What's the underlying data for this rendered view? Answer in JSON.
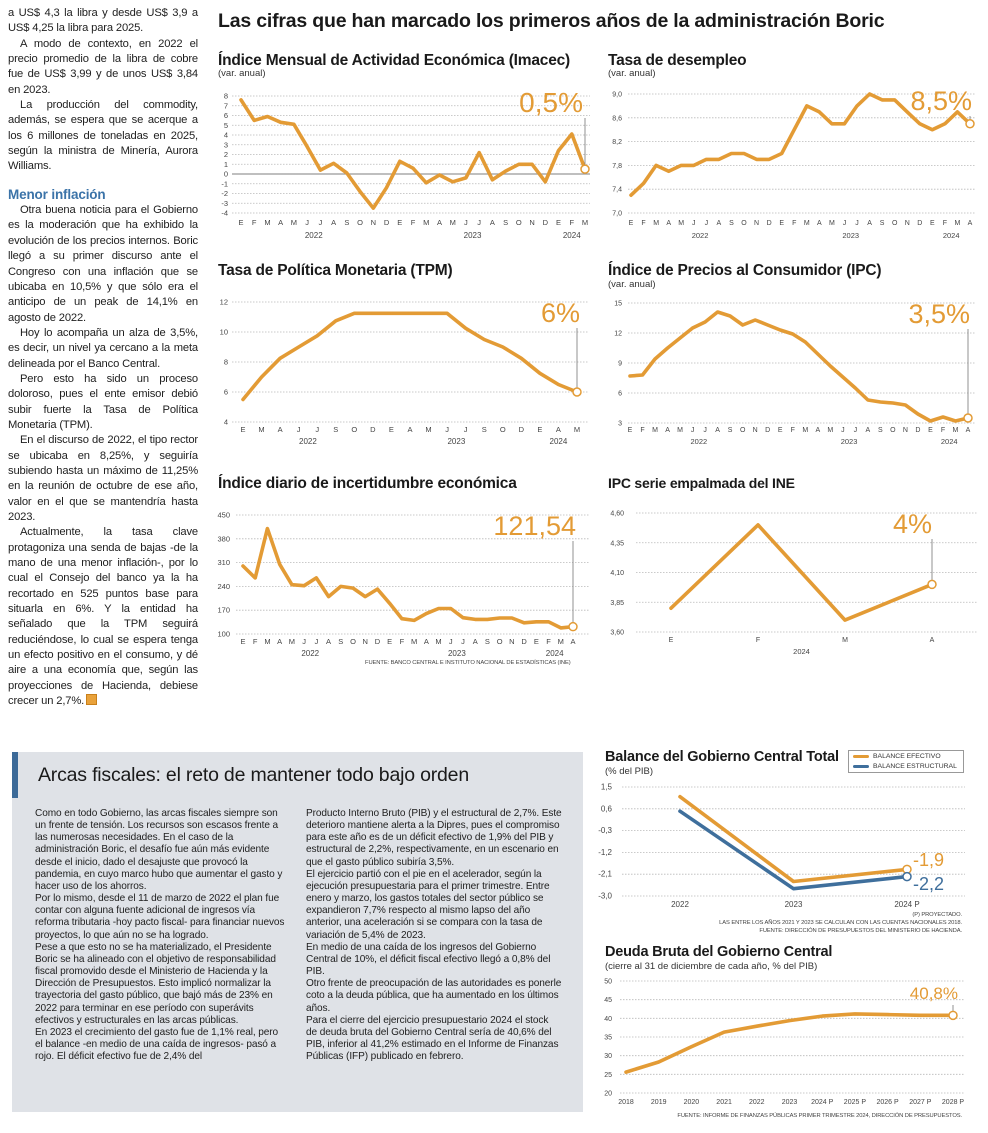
{
  "headline": "Las cifras que han marcado los primeros años de la administración Boric",
  "left_column": {
    "paragraphs_top": [
      "a US$ 4,3 la libra y desde US$ 3,9 a US$ 4,25 la libra para 2025.",
      "A modo de contexto, en 2022 el precio promedio de la libra de cobre fue de US$ 3,99 y de unos US$ 3,84 en 2023.",
      "La producción del commodity, además, se espera que se acerque a los 6 millones de toneladas en 2025, según la ministra de Minería, Aurora Williams."
    ],
    "subhead": "Menor inflación",
    "paragraphs_bottom": [
      "Otra buena noticia para el Gobierno es la moderación que ha exhibido la evolución de los precios internos. Boric llegó a su primer discurso ante el Congreso con una inflación que se ubicaba en 10,5% y que sólo era el anticipo de un peak de 14,1% en agosto de 2022.",
      "Hoy lo acompaña un alza de 3,5%, es decir, un nivel ya cercano a la meta delineada por el Banco Central.",
      "Pero esto ha sido un proceso doloroso, pues el ente emisor debió subir fuerte la Tasa de Política Monetaria (TPM).",
      "En el discurso de 2022, el tipo rector se ubicaba en 8,25%, y seguiría subiendo hasta un máximo de 11,25% en la reunión de octubre de ese año, valor en el que se mantendría hasta 2023.",
      "Actualmente, la tasa clave protagoniza una senda de bajas -de la mano de una menor inflación-, por lo cual el Consejo del banco ya la ha recortado en 525 puntos base para situarla en 6%. Y la entidad ha señalado que la TPM seguirá reduciéndose, lo cual se espera tenga un efecto positivo en el consumo, y dé aire a una economía que, según las proyecciones de Hacienda, debiese crecer un 2,7%."
    ]
  },
  "fiscal": {
    "title": "Arcas fiscales: el reto de mantener todo bajo orden",
    "col1": [
      "Como en todo Gobierno, las arcas fiscales siempre son un frente de tensión. Los recursos son escasos frente a las numerosas necesidades. En el caso de la administración Boric, el desafío fue aún más evidente desde el inicio, dado el desajuste que provocó la pandemia, en cuyo marco hubo que aumentar el gasto y hacer uso de los ahorros.",
      "Por lo mismo, desde el 11 de marzo de 2022 el plan fue contar con alguna fuente adicional de ingresos vía reforma tributaria -hoy pacto fiscal- para financiar nuevos proyectos, lo que aún no se ha logrado.",
      "Pese a que esto no se ha materializado, el Presidente Boric se ha alineado con el objetivo de responsabilidad fiscal promovido desde el Ministerio de Hacienda y la Dirección de Presupuestos. Esto implicó normalizar la trayectoria del gasto público, que bajó más de 23% en 2022 para terminar en ese período con superávits efectivos y estructurales en las arcas públicas.",
      "En 2023 el crecimiento del gasto fue de 1,1% real, pero el balance -en medio de una caída de ingresos- pasó a rojo. El déficit efectivo fue de 2,4% del"
    ],
    "col2": [
      "Producto Interno Bruto (PIB) y el estructural de 2,7%. Este deterioro mantiene alerta a la Dipres, pues el compromiso para este año es de un déficit efectivo de 1,9% del PIB y estructural de 2,2%, respectivamente, en un escenario en que el gasto público subiría 3,5%.",
      "El ejercicio partió con el pie en el acelerador, según la ejecución presupuestaria para el primer trimestre. Entre enero y marzo, los gastos totales del sector público se expandieron 7,7% respecto al mismo lapso del año anterior, una aceleración si se compara con la tasa de variación de 5,4% de 2023.",
      "En medio de una caída de los ingresos del Gobierno Central de 10%, el déficit fiscal efectivo llegó a 0,8% del PIB.",
      "Otro frente de preocupación de las autoridades es ponerle coto a la deuda pública, que ha aumentado en los últimos años.",
      "Para el cierre del ejercicio presupuestario 2024 el stock de deuda bruta del Gobierno Central sería de 40,6% del PIB, inferior al 41,2% estimado en el Informe de Finanzas Públicas (IFP) publicado en febrero."
    ]
  },
  "colors": {
    "orange": "#e39b35",
    "blue": "#3f6f9c",
    "fiscal_bg": "#dfe2e7",
    "subhead": "#3b73a8"
  },
  "sources": {
    "economy": "FUENTE: BANCO CENTRAL E INSTITUTO NACIONAL DE ESTADÍSTICAS (INE)",
    "balance_note1": "(P) PROYECTADO.",
    "balance_note2": "LAS ENTRE LOS AÑOS 2021 Y 2023 SE CALCULAN  CON LAS CUENTAS NACIONALES 2018.",
    "balance_source": "FUENTE: DIRECCIÓN DE PRESUPUESTOS DEL MINISTERIO DE HACIENDA.",
    "deuda_source": "FUENTE: INFORME DE FINANZAS PÚBLICAS PRIMER TRIMESTRE 2024, DIRECCIÓN DE PRESUPUESTOS."
  },
  "chart_data": {
    "imacec": {
      "type": "line",
      "title": "Índice Mensual de Actividad Económica (Imacec)",
      "subtitle": "(var. anual)",
      "x_labels": [
        "E",
        "F",
        "M",
        "A",
        "M",
        "J",
        "J",
        "A",
        "S",
        "O",
        "N",
        "D",
        "E",
        "F",
        "M",
        "A",
        "M",
        "J",
        "J",
        "A",
        "S",
        "O",
        "N",
        "D",
        "E",
        "F",
        "M"
      ],
      "years": [
        "2022",
        "2023",
        "2024"
      ],
      "ytick_labels": [
        "8",
        "7",
        "6",
        "5",
        "4",
        "3",
        "2",
        "1",
        "0",
        "-1",
        "-2",
        "-3",
        "-4"
      ],
      "ylim": [
        -4,
        8
      ],
      "zero_line": true,
      "grid": true,
      "series": [
        {
          "values": [
            7.6,
            5.5,
            5.9,
            5.3,
            5.1,
            2.8,
            0.4,
            1.1,
            0.1,
            -1.8,
            -3.5,
            -1.4,
            1.3,
            0.6,
            -0.9,
            -0.1,
            -0.8,
            -0.4,
            2.2,
            -0.6,
            0.3,
            1.0,
            1.0,
            -0.8,
            2.4,
            4.1,
            0.5
          ],
          "end_label": "0,5%"
        }
      ]
    },
    "desempleo": {
      "type": "line",
      "title": "Tasa de desempleo",
      "subtitle": "(var. anual)",
      "x_labels": [
        "E",
        "F",
        "M",
        "A",
        "M",
        "J",
        "J",
        "A",
        "S",
        "O",
        "N",
        "D",
        "E",
        "F",
        "M",
        "A",
        "M",
        "J",
        "J",
        "A",
        "S",
        "O",
        "N",
        "D",
        "E",
        "F",
        "M",
        "A"
      ],
      "years": [
        "2022",
        "2023",
        "2024"
      ],
      "ytick_labels": [
        "9,0",
        "8,6",
        "8,2",
        "7,8",
        "7,4",
        "7,0"
      ],
      "ylim": [
        7.0,
        9.0
      ],
      "grid": true,
      "series": [
        {
          "values": [
            7.3,
            7.5,
            7.8,
            7.7,
            7.8,
            7.8,
            7.9,
            7.9,
            8.0,
            8.0,
            7.9,
            7.9,
            8.0,
            8.4,
            8.8,
            8.7,
            8.5,
            8.5,
            8.8,
            9.0,
            8.9,
            8.9,
            8.7,
            8.5,
            8.4,
            8.5,
            8.7,
            8.5
          ],
          "end_label": "8,5%"
        }
      ]
    },
    "tpm": {
      "type": "line",
      "title": "Tasa de Política Monetaria (TPM)",
      "subtitle": "",
      "x_labels": [
        "E",
        "M",
        "A",
        "J",
        "J",
        "S",
        "O",
        "D",
        "E",
        "A",
        "M",
        "J",
        "J",
        "S",
        "O",
        "D",
        "E",
        "A",
        "M"
      ],
      "years": [
        "2022",
        "2023",
        "2024"
      ],
      "ytick_labels": [
        "12",
        "10",
        "8",
        "6",
        "4"
      ],
      "ylim": [
        4,
        12
      ],
      "grid": true,
      "series": [
        {
          "values": [
            5.5,
            7.0,
            8.25,
            9.0,
            9.75,
            10.75,
            11.25,
            11.25,
            11.25,
            11.25,
            11.25,
            11.25,
            10.25,
            9.5,
            9.0,
            8.25,
            7.25,
            6.5,
            6.0
          ],
          "end_label": "6%"
        }
      ]
    },
    "ipc": {
      "type": "line",
      "title": "Índice de Precios al Consumidor (IPC)",
      "subtitle": "(var. anual)",
      "x_labels": [
        "E",
        "F",
        "M",
        "A",
        "M",
        "J",
        "J",
        "A",
        "S",
        "O",
        "N",
        "D",
        "E",
        "F",
        "M",
        "A",
        "M",
        "J",
        "J",
        "A",
        "S",
        "O",
        "N",
        "D",
        "E",
        "F",
        "M",
        "A"
      ],
      "years": [
        "2022",
        "2023",
        "2024"
      ],
      "ytick_labels": [
        "15",
        "12",
        "9",
        "6",
        "3"
      ],
      "ylim": [
        3,
        15
      ],
      "grid": true,
      "series": [
        {
          "values": [
            7.7,
            7.8,
            9.4,
            10.5,
            11.5,
            12.5,
            13.1,
            14.1,
            13.7,
            12.8,
            13.3,
            12.8,
            12.3,
            11.9,
            11.1,
            9.9,
            8.7,
            7.6,
            6.5,
            5.3,
            5.1,
            5.0,
            4.8,
            3.9,
            3.2,
            3.6,
            3.2,
            3.5
          ],
          "end_label": "3,5%"
        }
      ]
    },
    "incertidumbre": {
      "type": "line",
      "title": "Índice diario de incertidumbre económica",
      "subtitle": "",
      "x_labels": [
        "E",
        "F",
        "M",
        "A",
        "M",
        "J",
        "J",
        "A",
        "S",
        "O",
        "N",
        "D",
        "E",
        "F",
        "M",
        "A",
        "M",
        "J",
        "J",
        "A",
        "S",
        "O",
        "N",
        "D",
        "E",
        "F",
        "M",
        "A"
      ],
      "years": [
        "2022",
        "2023",
        "2024"
      ],
      "ytick_labels": [
        "450",
        "380",
        "310",
        "240",
        "170",
        "100"
      ],
      "ylim": [
        100,
        450
      ],
      "grid": true,
      "series": [
        {
          "values": [
            300,
            265,
            410,
            305,
            245,
            242,
            265,
            210,
            240,
            235,
            210,
            232,
            190,
            145,
            140,
            160,
            175,
            175,
            148,
            143,
            143,
            147,
            147,
            133,
            136,
            136,
            118,
            121.54
          ],
          "end_label": "121,54"
        }
      ]
    },
    "ipc_ine": {
      "type": "line",
      "title": "IPC serie empalmada del INE",
      "subtitle": "",
      "x_labels": [
        "E",
        "F",
        "M",
        "A"
      ],
      "years": [
        "2024"
      ],
      "ytick_labels": [
        "4,60",
        "4,35",
        "4,10",
        "3,85",
        "3,60"
      ],
      "ylim": [
        3.6,
        4.6
      ],
      "grid": true,
      "series": [
        {
          "values": [
            3.8,
            4.5,
            3.7,
            4.0
          ],
          "end_label": "4%"
        }
      ]
    },
    "balance": {
      "type": "line",
      "title": "Balance del Gobierno Central Total",
      "subtitle": "(% del PIB)",
      "x_labels": [
        "2022",
        "2023",
        "2024 P"
      ],
      "years": [],
      "ytick_labels": [
        "1,5",
        "0,6",
        "-0,3",
        "-1,2",
        "-2,1",
        "-3,0"
      ],
      "ylim": [
        -3.0,
        1.5
      ],
      "grid": true,
      "legend": "top-right",
      "series": [
        {
          "name": "BALANCE EFECTIVO",
          "color": "#e39b35",
          "values": [
            1.1,
            -2.4,
            -1.9
          ],
          "end_label": "-1,9"
        },
        {
          "name": "BALANCE ESTRUCTURAL",
          "color": "#3f6f9c",
          "values": [
            0.5,
            -2.7,
            -2.2
          ],
          "end_label": "-2,2"
        }
      ]
    },
    "deuda": {
      "type": "line",
      "title": "Deuda Bruta del Gobierno Central",
      "subtitle": "(cierre al 31 de diciembre de cada año, % del PIB)",
      "x_labels": [
        "2018",
        "2019",
        "2020",
        "2021",
        "2022",
        "2023",
        "2024 P",
        "2025 P",
        "2026 P",
        "2027 P",
        "2028 P"
      ],
      "years": [],
      "ytick_labels": [
        "50",
        "45",
        "40",
        "35",
        "30",
        "25",
        "20"
      ],
      "ylim": [
        20,
        50
      ],
      "grid": true,
      "series": [
        {
          "values": [
            25.6,
            28.3,
            32.4,
            36.3,
            37.9,
            39.4,
            40.6,
            41.2,
            41.0,
            40.8,
            40.8
          ],
          "end_label": "40,8%"
        }
      ]
    }
  }
}
